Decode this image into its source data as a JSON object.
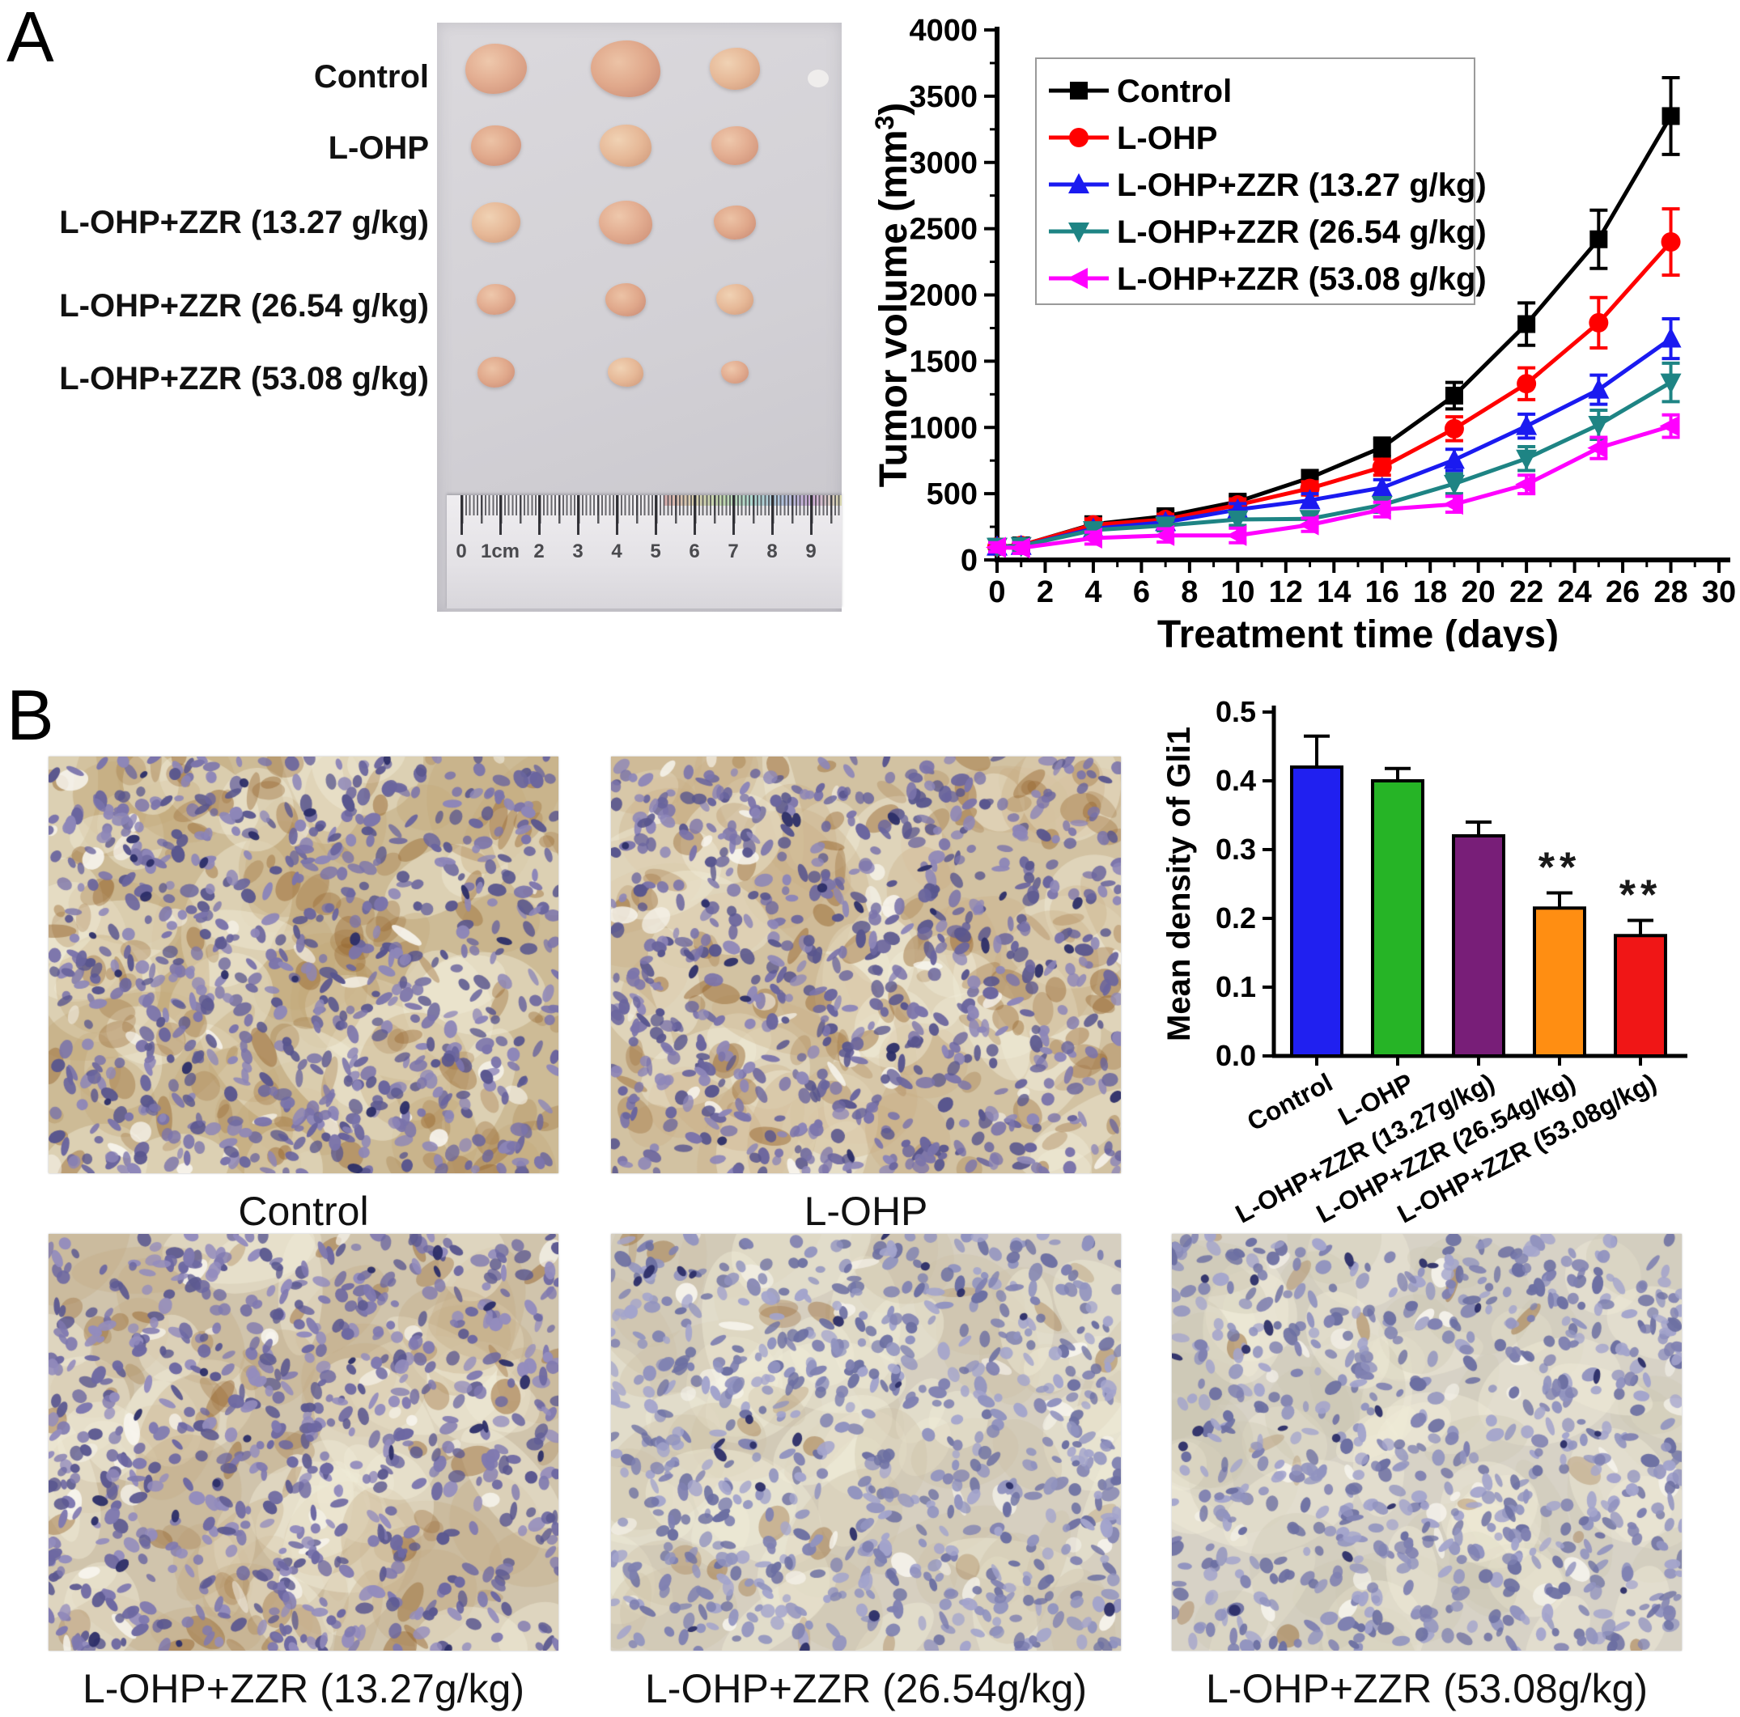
{
  "panel_a": {
    "label": "A",
    "groups": [
      "Control",
      "L-OHP",
      "L-OHP+ZZR (13.27 g/kg)",
      "L-OHP+ZZR (26.54 g/kg)",
      "L-OHP+ZZR (53.08 g/kg)"
    ],
    "ruler_marks": [
      "0",
      "1cm",
      "2",
      "3",
      "4",
      "5",
      "6",
      "7",
      "8",
      "9"
    ]
  },
  "panel_b": {
    "label": "B",
    "micrograph_labels": [
      "Control",
      "L-OHP",
      "L-OHP+ZZR (13.27g/kg)",
      "L-OHP+ZZR (26.54g/kg)",
      "L-OHP+ZZR (53.08g/kg)"
    ]
  },
  "chart_data": [
    {
      "type": "line",
      "title": "",
      "xlabel": "Treatment time (days)",
      "ylabel": "Tumor volume (mm³)",
      "xlim": [
        0,
        30
      ],
      "ylim": [
        0,
        4000
      ],
      "x_ticks": [
        0,
        2,
        4,
        6,
        8,
        10,
        12,
        14,
        16,
        18,
        20,
        22,
        24,
        26,
        28,
        30
      ],
      "y_ticks": [
        0,
        500,
        1000,
        1500,
        2000,
        2500,
        3000,
        3500,
        4000
      ],
      "grid": false,
      "legend_position": "top-left",
      "x": [
        0,
        1,
        4,
        7,
        10,
        13,
        16,
        19,
        22,
        25,
        28
      ],
      "series": [
        {
          "name": "Control",
          "color": "#000000",
          "marker": "square",
          "values": [
            100,
            110,
            270,
            330,
            440,
            620,
            850,
            1240,
            1780,
            2420,
            3350
          ],
          "errors": [
            40,
            40,
            45,
            40,
            45,
            55,
            70,
            100,
            160,
            220,
            290
          ]
        },
        {
          "name": "L-OHP",
          "color": "#ff0000",
          "marker": "circle",
          "values": [
            100,
            110,
            265,
            305,
            415,
            540,
            700,
            990,
            1330,
            1790,
            2400
          ],
          "errors": [
            40,
            40,
            45,
            40,
            45,
            50,
            60,
            90,
            120,
            190,
            250
          ]
        },
        {
          "name": "L-OHP+ZZR (13.27 g/kg)",
          "color": "#1a1af0",
          "marker": "triangle-up",
          "values": [
            100,
            105,
            235,
            285,
            380,
            450,
            545,
            755,
            1010,
            1285,
            1670
          ],
          "errors": [
            35,
            35,
            40,
            40,
            45,
            50,
            60,
            80,
            90,
            110,
            150
          ]
        },
        {
          "name": "L-OHP+ZZR (26.54 g/kg)",
          "color": "#1e8484",
          "marker": "triangle-down",
          "values": [
            100,
            105,
            225,
            260,
            305,
            310,
            415,
            575,
            765,
            1020,
            1340
          ],
          "errors": [
            35,
            35,
            40,
            40,
            45,
            50,
            55,
            75,
            90,
            110,
            145
          ]
        },
        {
          "name": "L-OHP+ZZR (53.08 g/kg)",
          "color": "#ff00ff",
          "marker": "triangle-left",
          "values": [
            95,
            90,
            165,
            185,
            185,
            265,
            380,
            420,
            570,
            845,
            1010
          ],
          "errors": [
            35,
            40,
            45,
            50,
            55,
            50,
            55,
            60,
            70,
            80,
            85
          ]
        }
      ]
    },
    {
      "type": "bar",
      "title": "",
      "xlabel": "",
      "ylabel": "Mean density of Gli1",
      "ylim": [
        0,
        0.5
      ],
      "y_ticks": [
        0.0,
        0.1,
        0.2,
        0.3,
        0.4,
        0.5
      ],
      "grid": false,
      "categories": [
        "Control",
        "L-OHP",
        "L-OHP+ZZR (13.27g/kg)",
        "L-OHP+ZZR (26.54g/kg)",
        "L-OHP+ZZR (53.08g/kg)"
      ],
      "values": [
        0.42,
        0.4,
        0.32,
        0.215,
        0.175
      ],
      "errors": [
        0.045,
        0.018,
        0.02,
        0.022,
        0.022
      ],
      "colors": [
        "#2020f0",
        "#26b426",
        "#781e78",
        "#ff8e12",
        "#f01616"
      ],
      "significance": [
        {
          "category_index": 3,
          "text": "**"
        },
        {
          "category_index": 4,
          "text": "**"
        }
      ]
    }
  ]
}
